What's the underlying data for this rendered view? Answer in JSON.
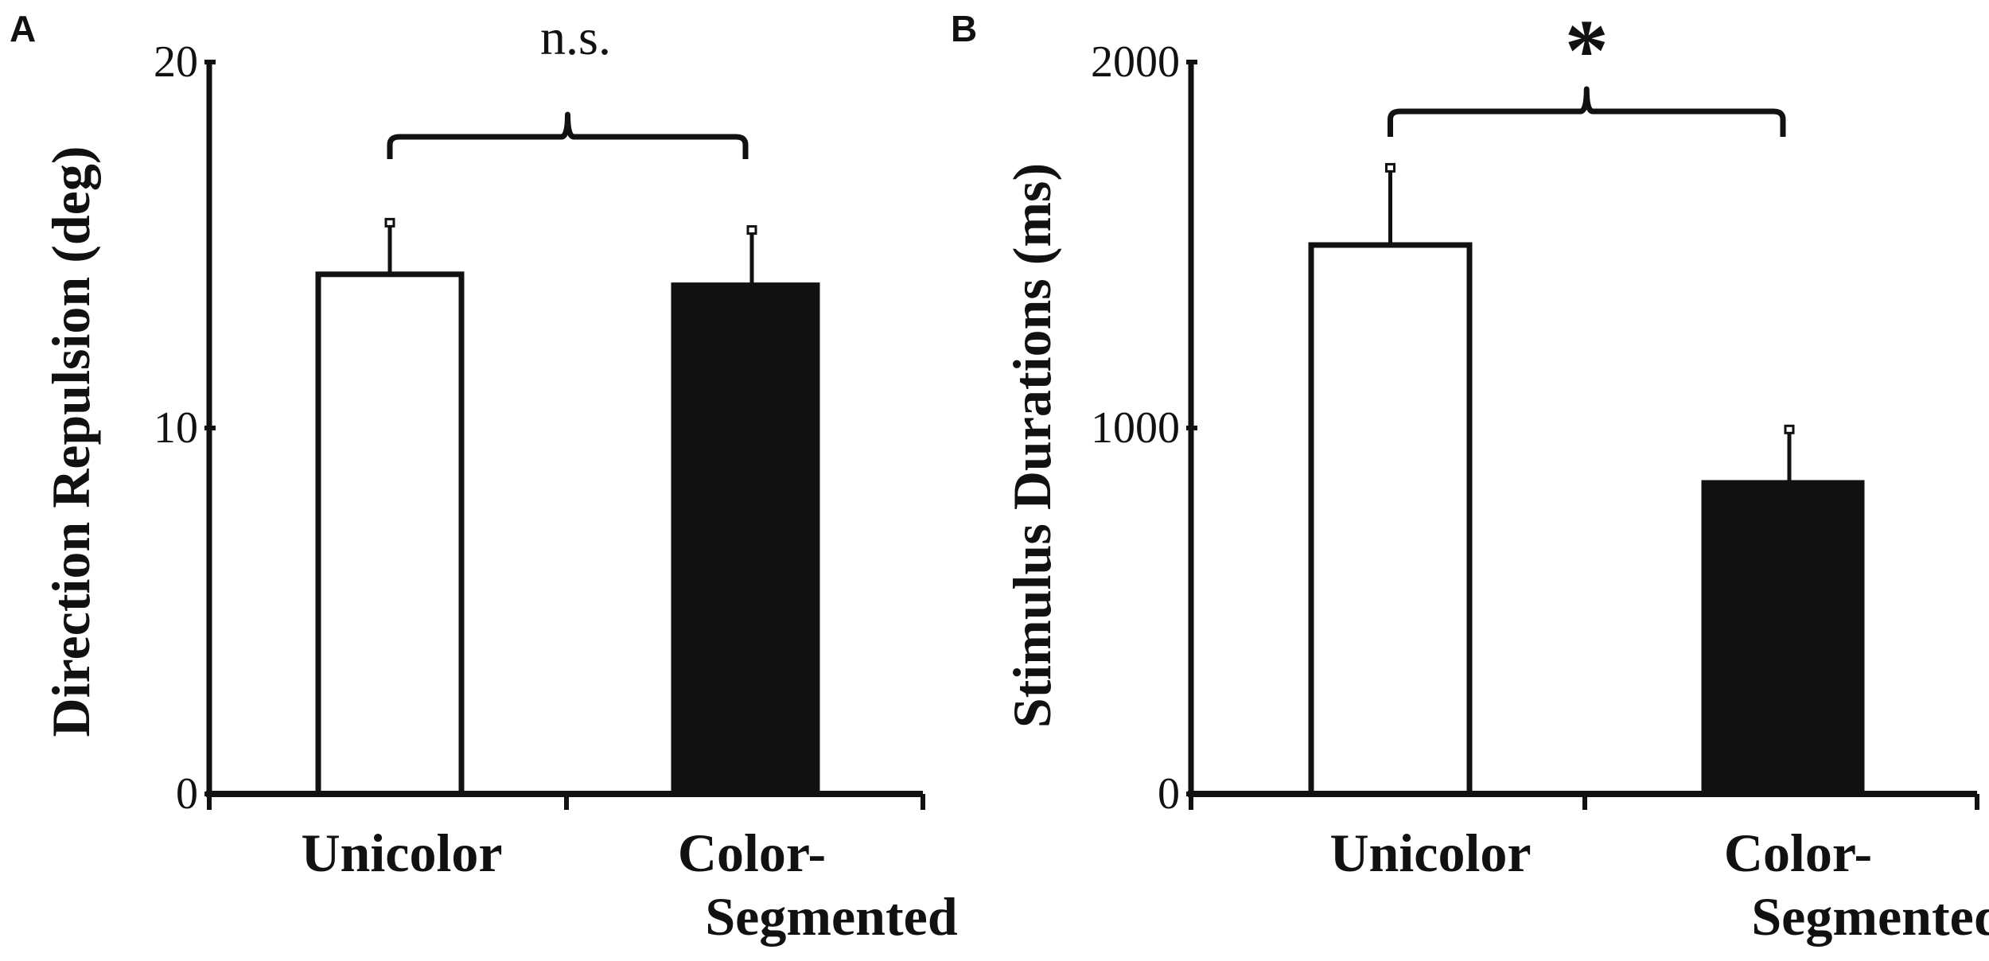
{
  "chart_data": [
    {
      "panel": "A",
      "type": "bar",
      "ylabel": "Direction Repulsion (deg)",
      "ylim": [
        0,
        20
      ],
      "yticks": [
        "0",
        "10",
        "20"
      ],
      "categories": [
        {
          "lines": [
            "Unicolor"
          ]
        },
        {
          "lines": [
            "Color-",
            "Segmented"
          ]
        }
      ],
      "values": [
        14.2,
        13.9
      ],
      "errors": [
        1.4,
        1.5
      ],
      "fills": [
        "#ffffff",
        "#111111"
      ],
      "significance": "n.s."
    },
    {
      "panel": "B",
      "type": "bar",
      "ylabel": "Stimulus Durations (ms)",
      "ylim": [
        0,
        2000
      ],
      "yticks": [
        "0",
        "1000",
        "2000"
      ],
      "categories": [
        {
          "lines": [
            "Unicolor"
          ]
        },
        {
          "lines": [
            "Color-",
            "Segmented"
          ]
        }
      ],
      "values": [
        1500,
        850
      ],
      "errors": [
        210,
        145
      ],
      "fills": [
        "#ffffff",
        "#111111"
      ],
      "significance": "*"
    }
  ]
}
